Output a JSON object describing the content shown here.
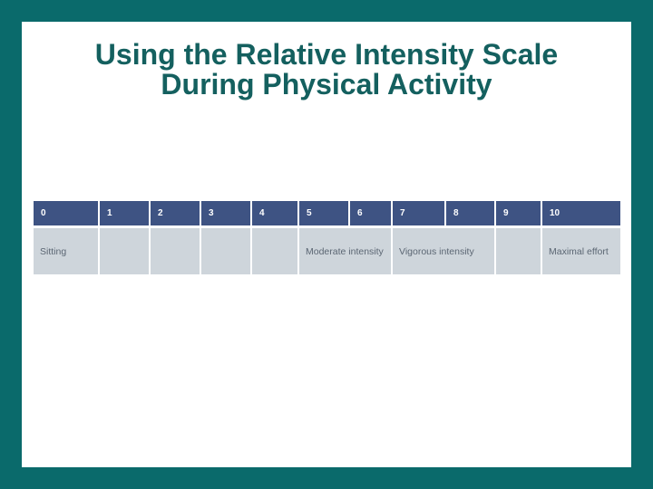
{
  "title": {
    "line1": "Using the Relative Intensity Scale",
    "line2": "During Physical Activity"
  },
  "scale": {
    "numbers": [
      "0",
      "1",
      "2",
      "3",
      "4",
      "5",
      "6",
      "7",
      "8",
      "9",
      "10"
    ],
    "cells": [
      {
        "label": "Sitting",
        "columns": "0",
        "span": 1
      },
      {
        "label": "",
        "columns": "1",
        "span": 1
      },
      {
        "label": "",
        "columns": "2",
        "span": 1
      },
      {
        "label": "",
        "columns": "3",
        "span": 1
      },
      {
        "label": "",
        "columns": "4",
        "span": 1
      },
      {
        "label": "Moderate intensity",
        "columns": "5-6",
        "span": 2
      },
      {
        "label": "Vigorous intensity",
        "columns": "7-8",
        "span": 2
      },
      {
        "label": "",
        "columns": "9",
        "span": 1
      },
      {
        "label": "Maximal effort",
        "columns": "10",
        "span": 1
      }
    ]
  },
  "colors": {
    "frame_teal": "#0a6a6b",
    "title_teal": "#14605f",
    "header_blue": "#3e5383",
    "cell_blue_gray": "#ced5db",
    "cell_text_gray": "#5b6673",
    "header_text": "#ffffff",
    "slide_background": "#ffffff"
  }
}
